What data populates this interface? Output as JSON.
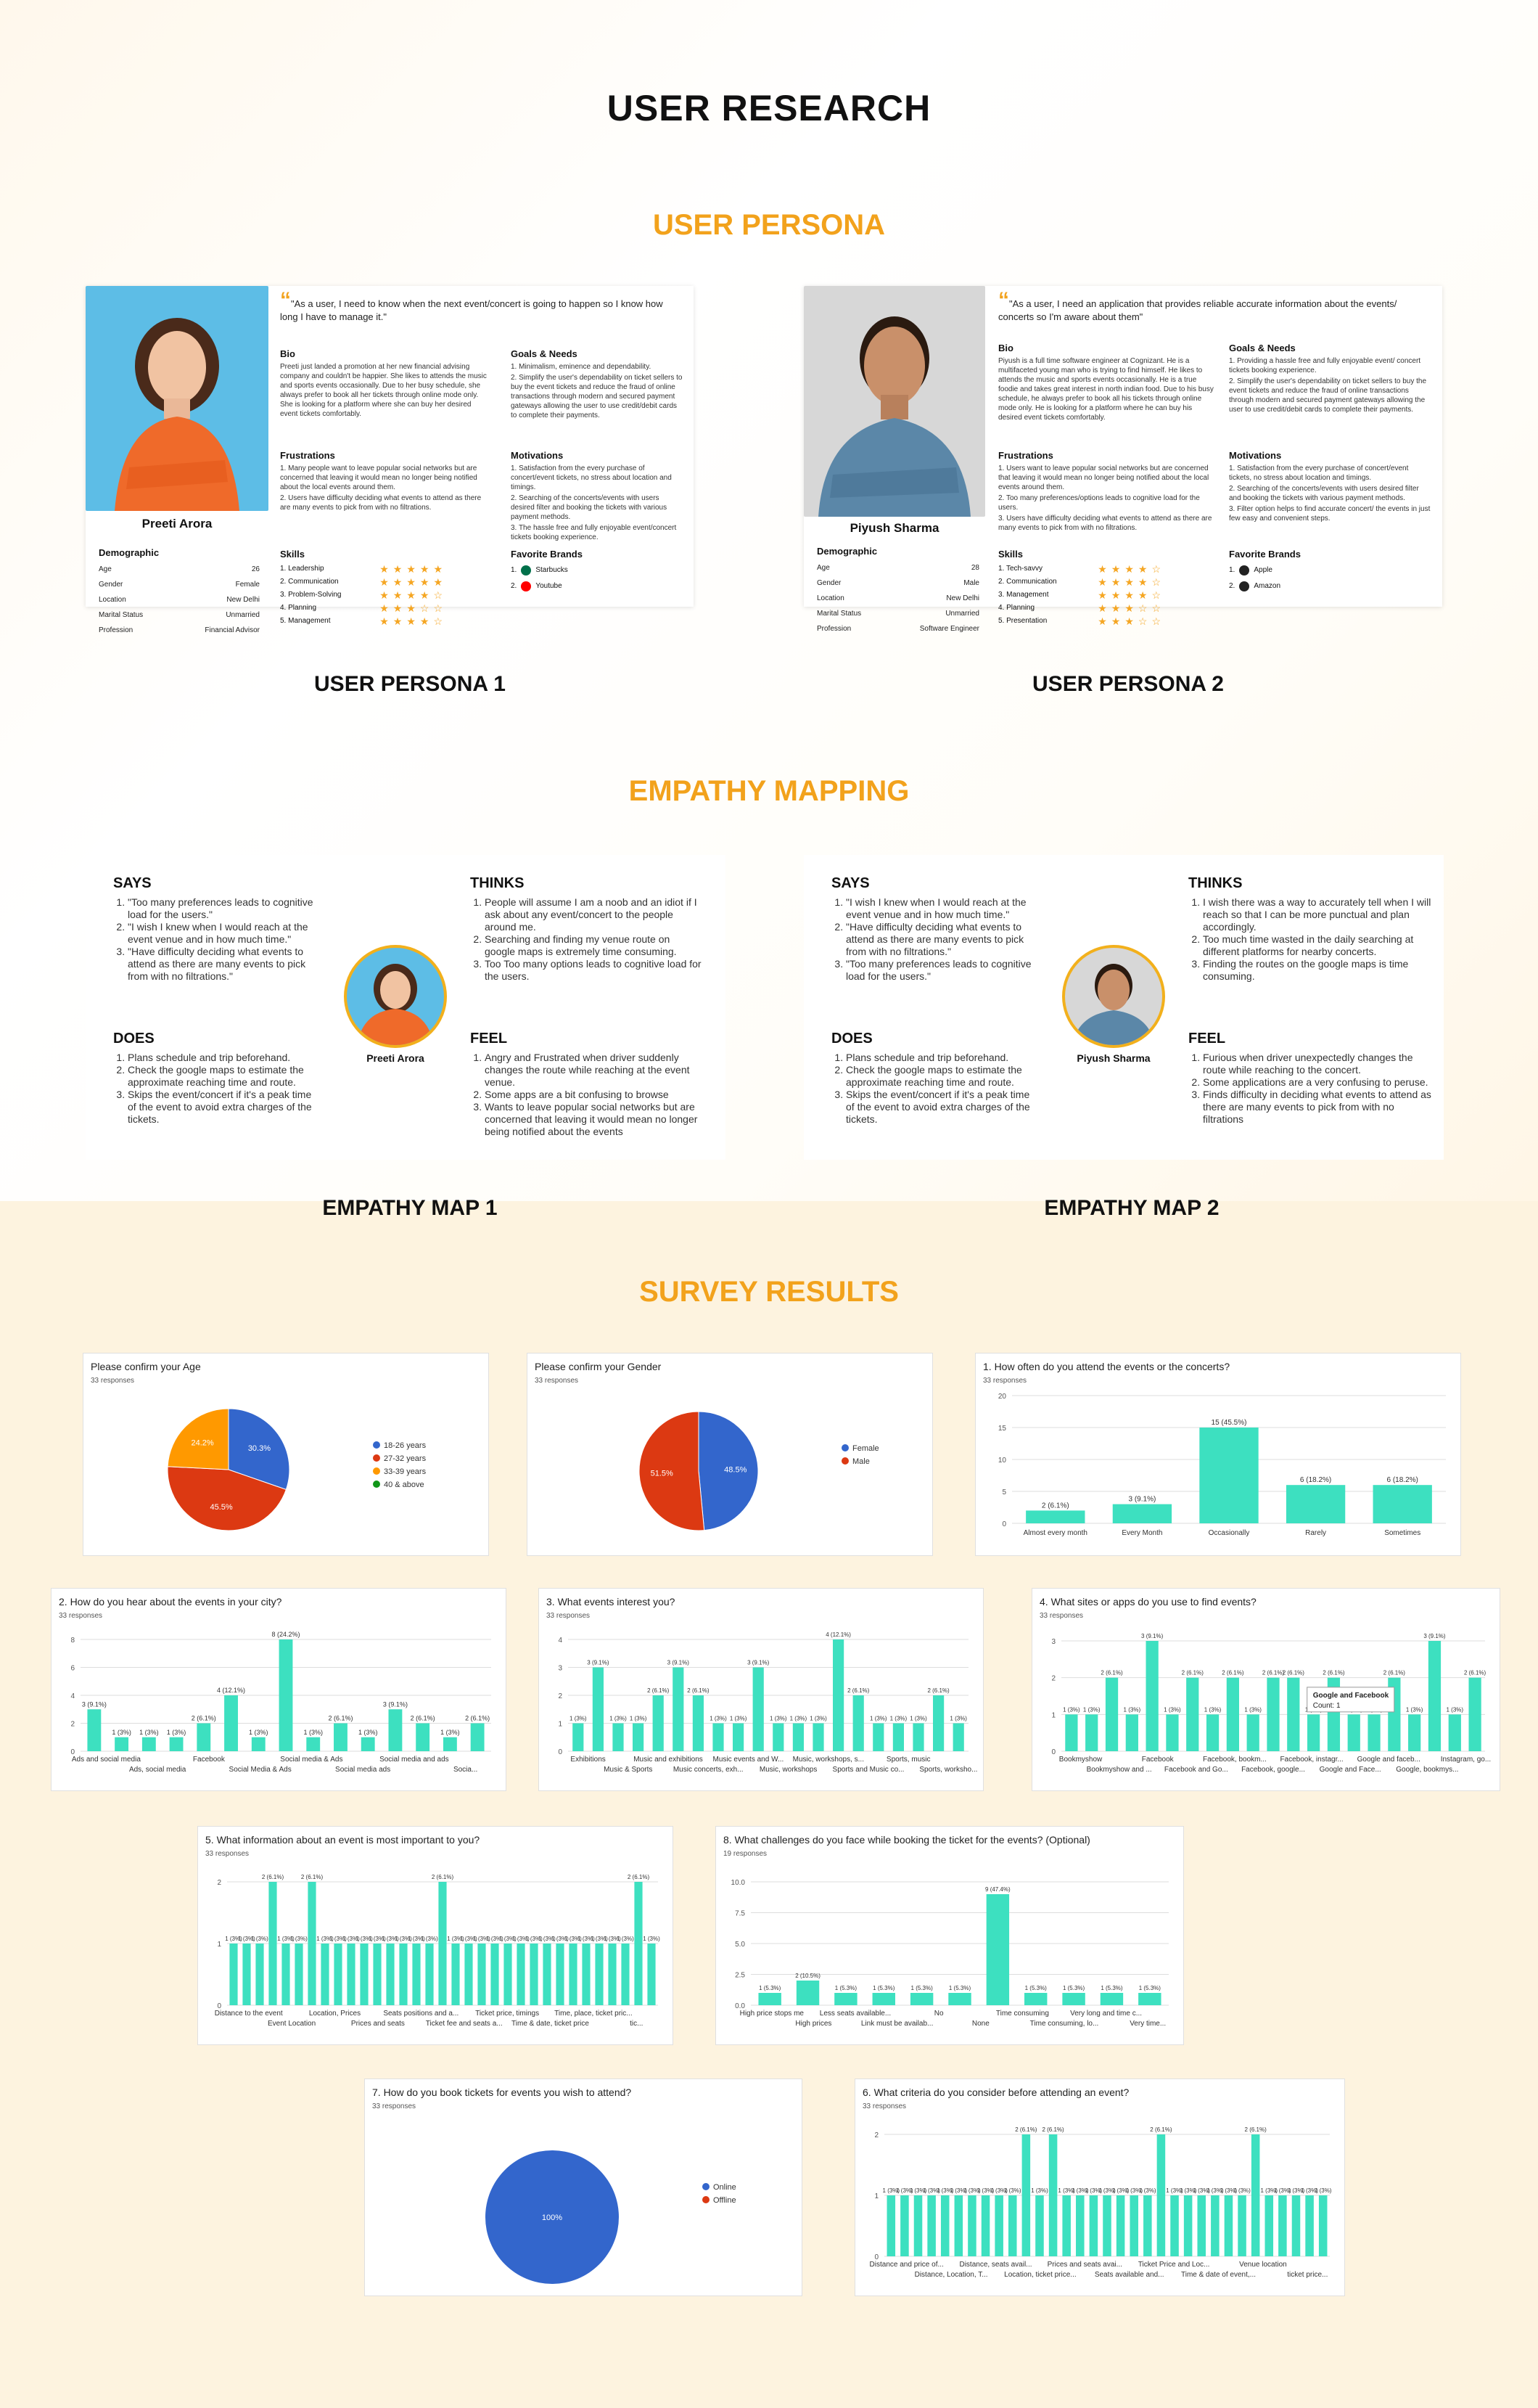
{
  "title": "USER RESEARCH",
  "sections": {
    "persona": "USER PERSONA",
    "empathy": "EMPATHY MAPPING",
    "survey": "SURVEY RESULTS"
  },
  "captions": {
    "p1": "USER PERSONA 1",
    "p2": "USER PERSONA 2",
    "e1": "EMPATHY MAP 1",
    "e2": "EMPATHY MAP 2"
  },
  "persona1": {
    "name": "Preeti Arora",
    "quote": "\"As a user, I need to know when the next event/concert is going to happen so I know how long I have to manage it.\"",
    "bio_h": "Bio",
    "bio": "Preeti just landed a promotion at her new financial advising company and couldn't be happier. She likes to attends the music and sports events occasionally. Due to her busy schedule, she always prefer to book all her tickets through online mode only. She is looking for a platform where she can buy her desired event tickets comfortably.",
    "goals_h": "Goals & Needs",
    "goals": [
      "1. Minimalism, eminence and dependability.",
      "2. Simplify the user's dependability on ticket sellers to buy the event tickets and reduce the fraud of online transactions through modern and secured payment gateways allowing the user to use credit/debit cards to complete their payments."
    ],
    "frus_h": "Frustrations",
    "frus": [
      "1. Many people want to leave popular social networks but are concerned that leaving it would mean no longer being notified about the local events around them.",
      "2. Users have difficulty deciding what events to attend as there are many events to pick from with no filtrations."
    ],
    "mot_h": "Motivations",
    "mot": [
      "1. Satisfaction from the every purchase of concert/event tickets, no stress about location and timings.",
      "2. Searching of the concerts/events with users desired filter and booking the tickets with various payment methods.",
      "3. The hassle free and fully enjoyable event/concert tickets booking experience."
    ],
    "demo_h": "Demographic",
    "demo": [
      [
        "Age",
        "26"
      ],
      [
        "Gender",
        "Female"
      ],
      [
        "Location",
        "New Delhi"
      ],
      [
        "Marital Status",
        "Unmarried"
      ],
      [
        "Profession",
        "Financial Advisor"
      ]
    ],
    "skills_h": "Skills",
    "skills": [
      [
        "1. Leadership",
        5
      ],
      [
        "2. Communication",
        5
      ],
      [
        "3. Problem-Solving",
        4
      ],
      [
        "4. Planning",
        3
      ],
      [
        "5. Management",
        4
      ]
    ],
    "brands_h": "Favorite Brands",
    "brands": [
      "Starbucks",
      "Youtube"
    ]
  },
  "persona2": {
    "name": "Piyush Sharma",
    "quote": "\"As a user, I need an application that provides reliable accurate information about the events/ concerts so I'm aware about them\"",
    "bio_h": "Bio",
    "bio": "Piyush is a full time software engineer at Cognizant. He is a multifaceted young man who is trying to find himself. He likes to attends the music and sports events occasionally. He is a true foodie and takes great interest in north indian food. Due to his busy schedule, he always prefer to book all his tickets through online mode only. He is looking for a platform where he can buy his desired event tickets comfortably.",
    "goals_h": "Goals & Needs",
    "goals": [
      "1. Providing a hassle free and fully enjoyable event/ concert tickets booking experience.",
      "2. Simplify the user's dependability on ticket sellers to buy the event tickets and reduce the fraud of online transactions through modern and secured payment gateways allowing the user to use credit/debit cards to complete their payments."
    ],
    "frus_h": "Frustrations",
    "frus": [
      "1. Users want to leave popular social networks but are concerned that leaving it would mean no longer being notified about the local events around them.",
      "2. Too many preferences/options leads to cognitive load for the users.",
      "3. Users have difficulty deciding what events to attend as there are many events to pick from with no filtrations."
    ],
    "mot_h": "Motivations",
    "mot": [
      "1. Satisfaction from the every purchase of concert/event tickets, no stress about location and timings.",
      "2. Searching of the concerts/events with users desired filter and booking the tickets with various payment methods.",
      "3. Filter option helps to find accurate concert/ the events in just few easy and convenient steps."
    ],
    "demo_h": "Demographic",
    "demo": [
      [
        "Age",
        "28"
      ],
      [
        "Gender",
        "Male"
      ],
      [
        "Location",
        "New Delhi"
      ],
      [
        "Marital Status",
        "Unmarried"
      ],
      [
        "Profession",
        "Software Engineer"
      ]
    ],
    "skills_h": "Skills",
    "skills": [
      [
        "1. Tech-savvy",
        4
      ],
      [
        "2. Communication",
        4
      ],
      [
        "3. Management",
        4
      ],
      [
        "4. Planning",
        3
      ],
      [
        "5. Presentation",
        3
      ]
    ],
    "brands_h": "Favorite Brands",
    "brands": [
      "Apple",
      "Amazon"
    ]
  },
  "empathy1": {
    "name": "Preeti Arora",
    "says_h": "SAYS",
    "says": [
      "\"Too many preferences leads to cognitive load for the users.\"",
      "\"I wish I knew when I would reach at the event venue and in how much time.\"",
      "\"Have difficulty deciding what events to attend as there are many events to pick from with no filtrations.\""
    ],
    "thinks_h": "THINKS",
    "thinks": [
      "People will assume I am a noob and an idiot if I ask about any event/concert to the people around me.",
      "Searching and finding my venue route on google maps is extremely time consuming.",
      "Too Too many options leads to cognitive load for the users."
    ],
    "does_h": "DOES",
    "does": [
      "Plans schedule and trip beforehand.",
      "Check the google maps to estimate the approximate reaching time and route.",
      "Skips the event/concert if it's a peak time of the event to avoid extra charges of the tickets."
    ],
    "feel_h": "FEEL",
    "feel": [
      "Angry and Frustrated when driver suddenly changes the route while reaching at the event venue.",
      "Some apps are a bit confusing to browse",
      "Wants to leave popular social networks but are concerned that leaving it would mean no longer being notified about the events"
    ]
  },
  "empathy2": {
    "name": "Piyush Sharma",
    "says_h": "SAYS",
    "says": [
      "\"I wish I knew when I would reach at the event venue and in how much time.\"",
      "\"Have difficulty deciding what events to attend as there are many events to pick from with no filtrations.\"",
      "\"Too many preferences leads to cognitive load for the users.\""
    ],
    "thinks_h": "THINKS",
    "thinks": [
      "I wish there was a way to accurately tell when I will reach so that I can be more punctual and plan accordingly.",
      "Too much time wasted in the daily searching at different platforms for nearby concerts.",
      "Finding the routes on the google maps is time consuming."
    ],
    "does_h": "DOES",
    "does": [
      "Plans schedule and trip beforehand.",
      "Check the google maps to estimate the approximate reaching time and route.",
      "Skips the event/concert if it's a peak time of the event to avoid extra charges of the tickets."
    ],
    "feel_h": "FEEL",
    "feel": [
      "Furious when driver unexpectedly changes the route while reaching to the concert.",
      "Some applications are a very confusing to peruse.",
      "Finds difficulty in deciding what events to attend as there are many events to pick from with no filtrations"
    ]
  },
  "colors": {
    "accent": "#f2a21c",
    "bar": "#3de0c0",
    "pie_blue": "#3366cc",
    "pie_red": "#dc3912",
    "pie_orange": "#ff9900",
    "pie_green": "#109618"
  },
  "chart_data": [
    {
      "id": "age",
      "type": "pie",
      "title": "Please confirm your Age",
      "responses": "33 responses",
      "labels": [
        "18-26 years",
        "27-32 years",
        "33-39 years",
        "40 & above"
      ],
      "values": [
        30.3,
        45.5,
        24.2,
        0
      ],
      "slice_labels": [
        "30.3%",
        "45.5%",
        "24.2%",
        ""
      ],
      "legend": "right"
    },
    {
      "id": "gender",
      "type": "pie",
      "title": "Please confirm your Gender",
      "responses": "33 responses",
      "labels": [
        "Female",
        "Male"
      ],
      "values": [
        48.5,
        51.5
      ],
      "slice_labels": [
        "48.5%",
        "51.5%"
      ],
      "legend": "right"
    },
    {
      "id": "q1",
      "type": "bar",
      "title": "1. How often do you attend the events or the concerts?",
      "responses": "33 responses",
      "categories": [
        "Almost every month",
        "Every Month",
        "Occasionally",
        "Rarely",
        "Sometimes"
      ],
      "values": [
        2,
        3,
        15,
        6,
        6
      ],
      "labels": [
        "2 (6.1%)",
        "3 (9.1%)",
        "15 (45.5%)",
        "6 (18.2%)",
        "6 (18.2%)"
      ],
      "yticks": [
        0,
        5,
        10,
        15,
        20
      ],
      "ylim": [
        0,
        20
      ]
    },
    {
      "id": "q2",
      "type": "bar",
      "title": "2. How do you hear about the events in your city?",
      "responses": "33 responses",
      "axis_labels": [
        "Ads and social media",
        "Ads, social media",
        "Facebook",
        "Social Media & Ads",
        "Social media & Ads",
        "Social media ads",
        "Social media and ads",
        "Socia..."
      ],
      "values": [
        3,
        1,
        1,
        1,
        2,
        4,
        1,
        8,
        1,
        2,
        1,
        3,
        2,
        1,
        2
      ],
      "labels": [
        "3 (9.1%)",
        "1 (3%)",
        "1 (3%)",
        "1 (3%)",
        "2 (6.1%)",
        "4 (12.1%)",
        "1 (3%)",
        "8 (24.2%)",
        "1 (3%)",
        "2 (6.1%)",
        "1 (3%)",
        "3 (9.1%)",
        "2 (6.1%)",
        "1 (3%)",
        "2 (6.1%)"
      ],
      "yticks": [
        0,
        2,
        4,
        6,
        8
      ],
      "ylim": [
        0,
        8
      ]
    },
    {
      "id": "q3",
      "type": "bar",
      "title": "3. What events interest you?",
      "responses": "33 responses",
      "axis_labels": [
        "Exhibitions",
        "Music & Sports",
        "Music and exhibitions",
        "Music concerts, exh...",
        "Music events and W...",
        "Music, workshops",
        "Music, workshops, s...",
        "Sports and Music co...",
        "Sports, music",
        "Sports, worksho..."
      ],
      "values": [
        1,
        3,
        1,
        1,
        2,
        3,
        2,
        1,
        1,
        3,
        1,
        1,
        1,
        4,
        2,
        1,
        1,
        1,
        2,
        1
      ],
      "labels": [
        "1 (3%)",
        "3 (9.1%)",
        "1 (3%)",
        "1 (3%)",
        "2 (6.1%)",
        "3 (9.1%)",
        "2 (6.1%)",
        "1 (3%)",
        "1 (3%)",
        "3 (9.1%)",
        "1 (3%)",
        "1 (3%)",
        "1 (3%)",
        "4 (12.1%)",
        "2 (6.1%)",
        "1 (3%)",
        "1 (3%)",
        "1 (3%)",
        "2 (6.1%)",
        "1 (3%)"
      ],
      "yticks": [
        0,
        1,
        2,
        3,
        4
      ],
      "ylim": [
        0,
        4
      ]
    },
    {
      "id": "q4",
      "type": "bar",
      "title": "4. What sites or apps do you use to find events?",
      "responses": "33 responses",
      "axis_labels": [
        "Bookmyshow",
        "Bookmyshow and ...",
        "Facebook",
        "Facebook and Go...",
        "Facebook, bookm...",
        "Facebook, google...",
        "Facebook, instagr...",
        "Google and Face...",
        "Google and faceb...",
        "Google, bookmys...",
        "Instagram, go..."
      ],
      "values": [
        1,
        1,
        2,
        1,
        3,
        1,
        2,
        1,
        2,
        1,
        2,
        2,
        1,
        2,
        1,
        1,
        2,
        1,
        3,
        1,
        2
      ],
      "labels": [
        "1 (3%)",
        "1 (3%)",
        "2 (6.1%)",
        "1 (3%)",
        "3 (9.1%)",
        "1 (3%)",
        "2 (6.1%)",
        "1 (3%)",
        "2 (6.1%)",
        "1 (3%)",
        "2 (6.1%)",
        "2 (6.1%)",
        "1 (3%)",
        "2 (6.1%)",
        "1 (3%)",
        "1 (3%)",
        "2 (6.1%)",
        "1 (3%)",
        "3 (9.1%)",
        "1 (3%)",
        "2 (6.1%)"
      ],
      "yticks": [
        0,
        1,
        2,
        3
      ],
      "ylim": [
        0,
        3
      ],
      "tooltip": [
        "Google and Facebook",
        "Count: 1"
      ]
    },
    {
      "id": "q5",
      "type": "bar",
      "title": "5. What information about an event is most important to you?",
      "responses": "33 responses",
      "axis_labels": [
        "Distance to the event",
        "Event Location",
        "Location, Prices",
        "Prices and seats",
        "Seats positions and a...",
        "Ticket fee and seats a...",
        "Ticket price, timings",
        "Time & date, ticket price",
        "Time, place, ticket pric...",
        "tic..."
      ],
      "values": [
        1,
        1,
        1,
        2,
        1,
        1,
        2,
        1,
        1,
        1,
        1,
        1,
        1,
        1,
        1,
        1,
        2,
        1,
        1,
        1,
        1,
        1,
        1,
        1,
        1,
        1,
        1,
        1,
        1,
        1,
        1,
        2,
        1
      ],
      "yticks": [
        0,
        1,
        2
      ],
      "ylim": [
        0,
        2
      ]
    },
    {
      "id": "q8",
      "type": "bar",
      "title": "8. What challenges do you face while booking the ticket for the events? (Optional)",
      "responses": "19 responses",
      "axis_labels": [
        "High price stops me",
        "High prices",
        "Less seats available...",
        "Link must be availab...",
        "No",
        "None",
        "Time consuming",
        "Time consuming, lo...",
        "Very long and time c...",
        "Very time..."
      ],
      "values": [
        1,
        2,
        1,
        1,
        1,
        1,
        9,
        1,
        1,
        1,
        1
      ],
      "labels": [
        "1 (5.3%)",
        "2 (10.5%)",
        "1 (5.3%)",
        "1 (5.3%)",
        "1 (5.3%)",
        "1 (5.3%)",
        "9 (47.4%)",
        "1 (5.3%)",
        "1 (5.3%)",
        "1 (5.3%)",
        "1 (5.3%)"
      ],
      "yticks": [
        0,
        2.5,
        5,
        7.5,
        10
      ],
      "ytick_labels": [
        "0.0",
        "2.5",
        "5.0",
        "7.5",
        "10.0"
      ],
      "ylim": [
        0,
        10
      ]
    },
    {
      "id": "q7",
      "type": "pie",
      "title": "7. How do you book tickets for events you wish to attend?",
      "responses": "33 responses",
      "labels": [
        "Online",
        "Offline"
      ],
      "values": [
        100,
        0
      ],
      "slice_labels": [
        "100%",
        ""
      ],
      "legend": "right"
    },
    {
      "id": "q6",
      "type": "bar",
      "title": "6. What criteria do you consider before attending an event?",
      "responses": "33 responses",
      "axis_labels": [
        "Distance and price of...",
        "Distance, Location, T...",
        "Distance, seats avail...",
        "Location, ticket price...",
        "Prices and seats avai...",
        "Seats available and...",
        "Ticket Price and Loc...",
        "Time & date of event,...",
        "Venue location",
        "ticket price..."
      ],
      "values": [
        1,
        1,
        1,
        1,
        1,
        1,
        1,
        1,
        1,
        1,
        2,
        1,
        2,
        1,
        1,
        1,
        1,
        1,
        1,
        1,
        2,
        1,
        1,
        1,
        1,
        1,
        1,
        2,
        1,
        1,
        1,
        1,
        1
      ],
      "yticks": [
        0,
        1,
        2
      ],
      "ylim": [
        0,
        2
      ]
    }
  ]
}
